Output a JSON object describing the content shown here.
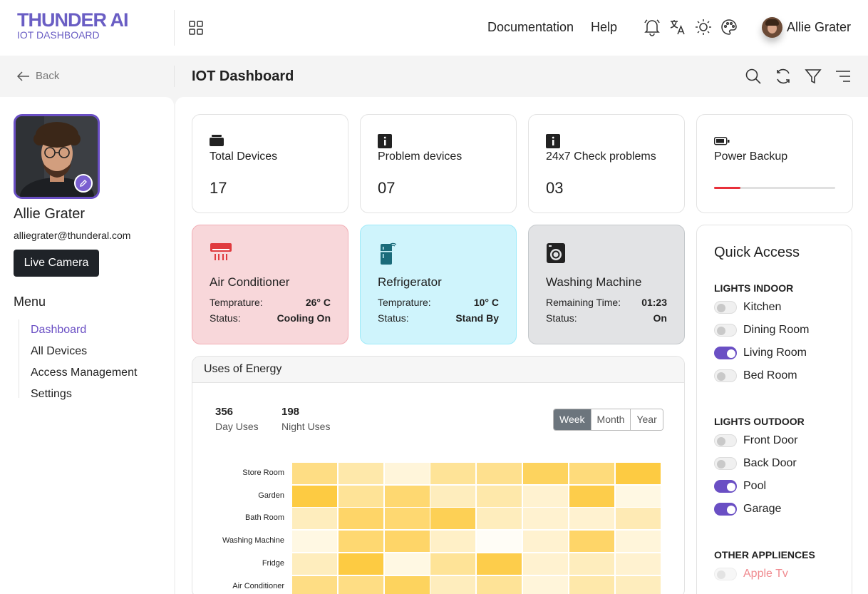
{
  "brand": {
    "name": "THUNDER AI",
    "subtitle": "IOT DASHBOARD"
  },
  "topnav": {
    "documentation": "Documentation",
    "help": "Help"
  },
  "user": {
    "name": "Allie Grater"
  },
  "subbar": {
    "back": "Back",
    "title": "IOT Dashboard"
  },
  "profile": {
    "name": "Allie Grater",
    "email": "alliegrater@thunderal.com",
    "live_camera": "Live Camera"
  },
  "menu": {
    "title": "Menu",
    "items": [
      {
        "label": "Dashboard",
        "active": true
      },
      {
        "label": "All Devices",
        "active": false
      },
      {
        "label": "Access Management",
        "active": false
      },
      {
        "label": "Settings",
        "active": false
      }
    ]
  },
  "stats": [
    {
      "label": "Total Devices",
      "value": "17",
      "icon": "device-stack-icon"
    },
    {
      "label": "Problem devices",
      "value": "07",
      "icon": "info-icon"
    },
    {
      "label": "24x7 Check problems",
      "value": "03",
      "icon": "info-icon"
    },
    {
      "label": "Power Backup",
      "progress": 0.22,
      "icon": "battery-icon"
    }
  ],
  "devices": [
    {
      "name": "Air Conditioner",
      "icon": "air-conditioner-icon",
      "row1_label": "Temprature:",
      "row1_value": "26° C",
      "row2_label": "Status:",
      "row2_value": "Cooling On",
      "bg": "#f8d7da",
      "border": "#f1aeb5",
      "icon_color": "#e03a3e"
    },
    {
      "name": "Refrigerator",
      "icon": "refrigerator-icon",
      "row1_label": "Temprature:",
      "row1_value": "10° C",
      "row2_label": "Status:",
      "row2_value": "Stand By",
      "bg": "#cff4fc",
      "border": "#9eeaf9",
      "icon_color": "#1b6b7a"
    },
    {
      "name": "Washing Machine",
      "icon": "washing-machine-icon",
      "row1_label": "Remaining Time:",
      "row1_value": "01:23",
      "row2_label": "Status:",
      "row2_value": "On",
      "bg": "#e2e3e5",
      "border": "#c4c8cb",
      "icon_color": "#222222"
    }
  ],
  "energy": {
    "title": "Uses of Energy",
    "day_value": "356",
    "day_label": "Day Uses",
    "night_value": "198",
    "night_label": "Night Uses",
    "periods": [
      "Week",
      "Month",
      "Year"
    ],
    "selected_period": "Week"
  },
  "chart_data": {
    "type": "heatmap",
    "rows": [
      "Store Room",
      "Garden",
      "Bath Room",
      "Washing Machine",
      "Fridge",
      "Air Conditioner"
    ],
    "columns": 8,
    "values": [
      [
        0.6,
        0.4,
        0.15,
        0.5,
        0.55,
        0.8,
        0.65,
        0.95
      ],
      [
        0.95,
        0.5,
        0.7,
        0.3,
        0.4,
        0.2,
        0.9,
        0.1
      ],
      [
        0.3,
        0.75,
        0.7,
        0.85,
        0.3,
        0.2,
        0.2,
        0.35
      ],
      [
        0.1,
        0.7,
        0.75,
        0.25,
        0.0,
        0.2,
        0.75,
        0.15
      ],
      [
        0.3,
        0.95,
        0.1,
        0.5,
        0.9,
        0.2,
        0.3,
        0.2
      ],
      [
        0.6,
        0.6,
        0.8,
        0.3,
        0.5,
        0.15,
        0.4,
        0.3
      ]
    ],
    "colors": {
      "low": "#fffdf6",
      "high": "#fdc838"
    }
  },
  "quick_access": {
    "title": "Quick Access",
    "sections": [
      {
        "title": "LIGHTS INDOOR",
        "items": [
          {
            "label": "Kitchen",
            "on": false
          },
          {
            "label": "Dining Room",
            "on": false
          },
          {
            "label": "Living Room",
            "on": true
          },
          {
            "label": "Bed Room",
            "on": false
          }
        ]
      },
      {
        "title": "LIGHTS OUTDOOR",
        "items": [
          {
            "label": "Front Door",
            "on": false
          },
          {
            "label": "Back Door",
            "on": false
          },
          {
            "label": "Pool",
            "on": true
          },
          {
            "label": "Garage",
            "on": true
          }
        ]
      },
      {
        "title": "OTHER APPLIENCES",
        "items": [
          {
            "label": "Apple Tv",
            "on": false,
            "disabled": true
          }
        ]
      }
    ]
  },
  "colors": {
    "accent": "#6a4fc4",
    "danger": "#e8303a"
  }
}
